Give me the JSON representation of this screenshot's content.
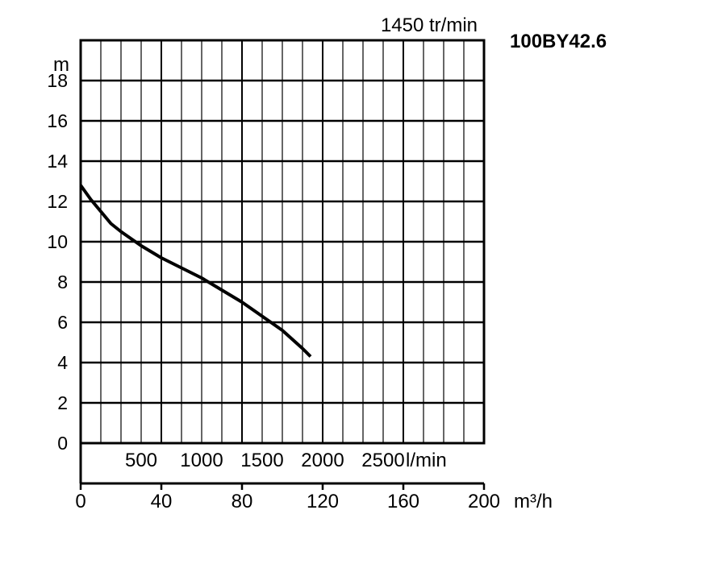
{
  "chart_data": {
    "type": "line",
    "title": "100BY42.6",
    "subtitle": "1450 tr/min",
    "ylabel": "m",
    "xlabel": "m³/h",
    "secondary_x_unit": "l/min",
    "xlim": [
      0,
      200
    ],
    "ylim": [
      0,
      20
    ],
    "grid": true,
    "x_ticks": [
      "0",
      "40",
      "80",
      "120",
      "160",
      "200"
    ],
    "x_tick_values": [
      0,
      40,
      80,
      120,
      160,
      200
    ],
    "y_ticks": [
      "0",
      "2",
      "4",
      "6",
      "8",
      "10",
      "12",
      "14",
      "16",
      "18"
    ],
    "y_tick_values": [
      0,
      2,
      4,
      6,
      8,
      10,
      12,
      14,
      16,
      18
    ],
    "secondary_x_ticks": [
      "500",
      "1000",
      "1500",
      "2000",
      "2500"
    ],
    "secondary_x_tick_values": [
      500,
      1000,
      1500,
      2000,
      2500
    ],
    "series": [
      {
        "x": [
          0,
          5,
          10,
          15,
          20,
          30,
          40,
          50,
          60,
          70,
          80,
          90,
          100,
          110,
          114
        ],
        "y": [
          12.8,
          12.1,
          11.5,
          10.9,
          10.5,
          9.8,
          9.2,
          8.7,
          8.2,
          7.6,
          7.0,
          6.3,
          5.6,
          4.7,
          4.3
        ],
        "color": "#000000"
      }
    ]
  }
}
